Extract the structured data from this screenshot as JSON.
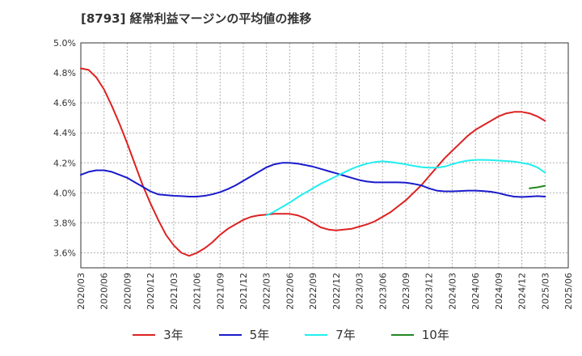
{
  "chart_data": {
    "type": "line",
    "title": "[8793]  経常利益マージンの平均値の推移",
    "xlabel": "",
    "ylabel": "",
    "x_ticks": [
      "2020/03",
      "2020/06",
      "2020/09",
      "2020/12",
      "2021/03",
      "2021/06",
      "2021/09",
      "2021/12",
      "2022/03",
      "2022/06",
      "2022/09",
      "2022/12",
      "2023/03",
      "2023/06",
      "2023/09",
      "2023/12",
      "2024/03",
      "2024/06",
      "2024/09",
      "2024/12",
      "2025/03",
      "2025/06"
    ],
    "y_ticks": [
      "3.6%",
      "3.8%",
      "4.0%",
      "4.2%",
      "4.4%",
      "4.6%",
      "4.8%",
      "5.0%"
    ],
    "xlim": [
      "2020/03",
      "2025/06"
    ],
    "ylim": [
      3.5,
      5.0
    ],
    "grid": true,
    "legend_position": "bottom",
    "series": [
      {
        "name": "3年",
        "color": "#dd2222",
        "x": [
          "2020/03",
          "2020/04",
          "2020/05",
          "2020/06",
          "2020/07",
          "2020/08",
          "2020/09",
          "2020/10",
          "2020/11",
          "2020/12",
          "2021/01",
          "2021/02",
          "2021/03",
          "2021/04",
          "2021/05",
          "2021/06",
          "2021/07",
          "2021/08",
          "2021/09",
          "2021/10",
          "2021/11",
          "2021/12",
          "2022/01",
          "2022/02",
          "2022/03",
          "2022/04",
          "2022/05",
          "2022/06",
          "2022/07",
          "2022/08",
          "2022/09",
          "2022/10",
          "2022/11",
          "2022/12",
          "2023/01",
          "2023/02",
          "2023/03",
          "2023/04",
          "2023/05",
          "2023/06",
          "2023/07",
          "2023/08",
          "2023/09",
          "2023/10",
          "2023/11",
          "2023/12",
          "2024/01",
          "2024/02",
          "2024/03",
          "2024/04",
          "2024/05",
          "2024/06",
          "2024/07",
          "2024/08",
          "2024/09",
          "2024/10",
          "2024/11",
          "2024/12",
          "2025/01",
          "2025/02",
          "2025/03"
        ],
        "values": [
          4.83,
          4.82,
          4.77,
          4.69,
          4.58,
          4.46,
          4.33,
          4.19,
          4.05,
          3.93,
          3.82,
          3.72,
          3.65,
          3.6,
          3.58,
          3.6,
          3.63,
          3.67,
          3.72,
          3.76,
          3.79,
          3.82,
          3.84,
          3.85,
          3.855,
          3.86,
          3.86,
          3.86,
          3.85,
          3.83,
          3.8,
          3.77,
          3.755,
          3.75,
          3.755,
          3.76,
          3.775,
          3.79,
          3.81,
          3.84,
          3.87,
          3.91,
          3.95,
          4.0,
          4.05,
          4.11,
          4.17,
          4.23,
          4.28,
          4.33,
          4.38,
          4.42,
          4.45,
          4.48,
          4.51,
          4.53,
          4.54,
          4.54,
          4.53,
          4.51,
          4.48
        ]
      },
      {
        "name": "5年",
        "color": "#1a1acc",
        "x": [
          "2020/03",
          "2020/04",
          "2020/05",
          "2020/06",
          "2020/07",
          "2020/08",
          "2020/09",
          "2020/10",
          "2020/11",
          "2020/12",
          "2021/01",
          "2021/02",
          "2021/03",
          "2021/04",
          "2021/05",
          "2021/06",
          "2021/07",
          "2021/08",
          "2021/09",
          "2021/10",
          "2021/11",
          "2021/12",
          "2022/01",
          "2022/02",
          "2022/03",
          "2022/04",
          "2022/05",
          "2022/06",
          "2022/07",
          "2022/08",
          "2022/09",
          "2022/10",
          "2022/11",
          "2022/12",
          "2023/01",
          "2023/02",
          "2023/03",
          "2023/04",
          "2023/05",
          "2023/06",
          "2023/07",
          "2023/08",
          "2023/09",
          "2023/10",
          "2023/11",
          "2023/12",
          "2024/01",
          "2024/02",
          "2024/03",
          "2024/04",
          "2024/05",
          "2024/06",
          "2024/07",
          "2024/08",
          "2024/09",
          "2024/10",
          "2024/11",
          "2024/12",
          "2025/01",
          "2025/02",
          "2025/03"
        ],
        "values": [
          4.12,
          4.14,
          4.15,
          4.15,
          4.14,
          4.12,
          4.1,
          4.07,
          4.04,
          4.01,
          3.99,
          3.985,
          3.98,
          3.978,
          3.975,
          3.975,
          3.98,
          3.99,
          4.005,
          4.025,
          4.05,
          4.08,
          4.11,
          4.14,
          4.17,
          4.19,
          4.2,
          4.2,
          4.195,
          4.185,
          4.175,
          4.16,
          4.145,
          4.13,
          4.115,
          4.1,
          4.085,
          4.075,
          4.07,
          4.07,
          4.07,
          4.07,
          4.068,
          4.06,
          4.05,
          4.03,
          4.015,
          4.01,
          4.01,
          4.012,
          4.015,
          4.015,
          4.012,
          4.007,
          3.998,
          3.985,
          3.975,
          3.972,
          3.975,
          3.978,
          3.975
        ]
      },
      {
        "name": "7年",
        "color": "#22eeee",
        "x": [
          "2022/03",
          "2022/04",
          "2022/05",
          "2022/06",
          "2022/07",
          "2022/08",
          "2022/09",
          "2022/10",
          "2022/11",
          "2022/12",
          "2023/01",
          "2023/02",
          "2023/03",
          "2023/04",
          "2023/05",
          "2023/06",
          "2023/07",
          "2023/08",
          "2023/09",
          "2023/10",
          "2023/11",
          "2023/12",
          "2024/01",
          "2024/02",
          "2024/03",
          "2024/04",
          "2024/05",
          "2024/06",
          "2024/07",
          "2024/08",
          "2024/09",
          "2024/10",
          "2024/11",
          "2024/12",
          "2025/01",
          "2025/02",
          "2025/03"
        ],
        "values": [
          3.85,
          3.875,
          3.905,
          3.935,
          3.97,
          4.0,
          4.03,
          4.06,
          4.085,
          4.11,
          4.135,
          4.16,
          4.18,
          4.195,
          4.205,
          4.21,
          4.205,
          4.198,
          4.19,
          4.18,
          4.172,
          4.168,
          4.168,
          4.175,
          4.19,
          4.205,
          4.215,
          4.22,
          4.22,
          4.218,
          4.215,
          4.212,
          4.208,
          4.2,
          4.19,
          4.17,
          4.135
        ]
      },
      {
        "name": "10年",
        "color": "#228822",
        "x": [
          "2025/01",
          "2025/02",
          "2025/03"
        ],
        "values": [
          4.03,
          4.037,
          4.047
        ]
      }
    ]
  }
}
